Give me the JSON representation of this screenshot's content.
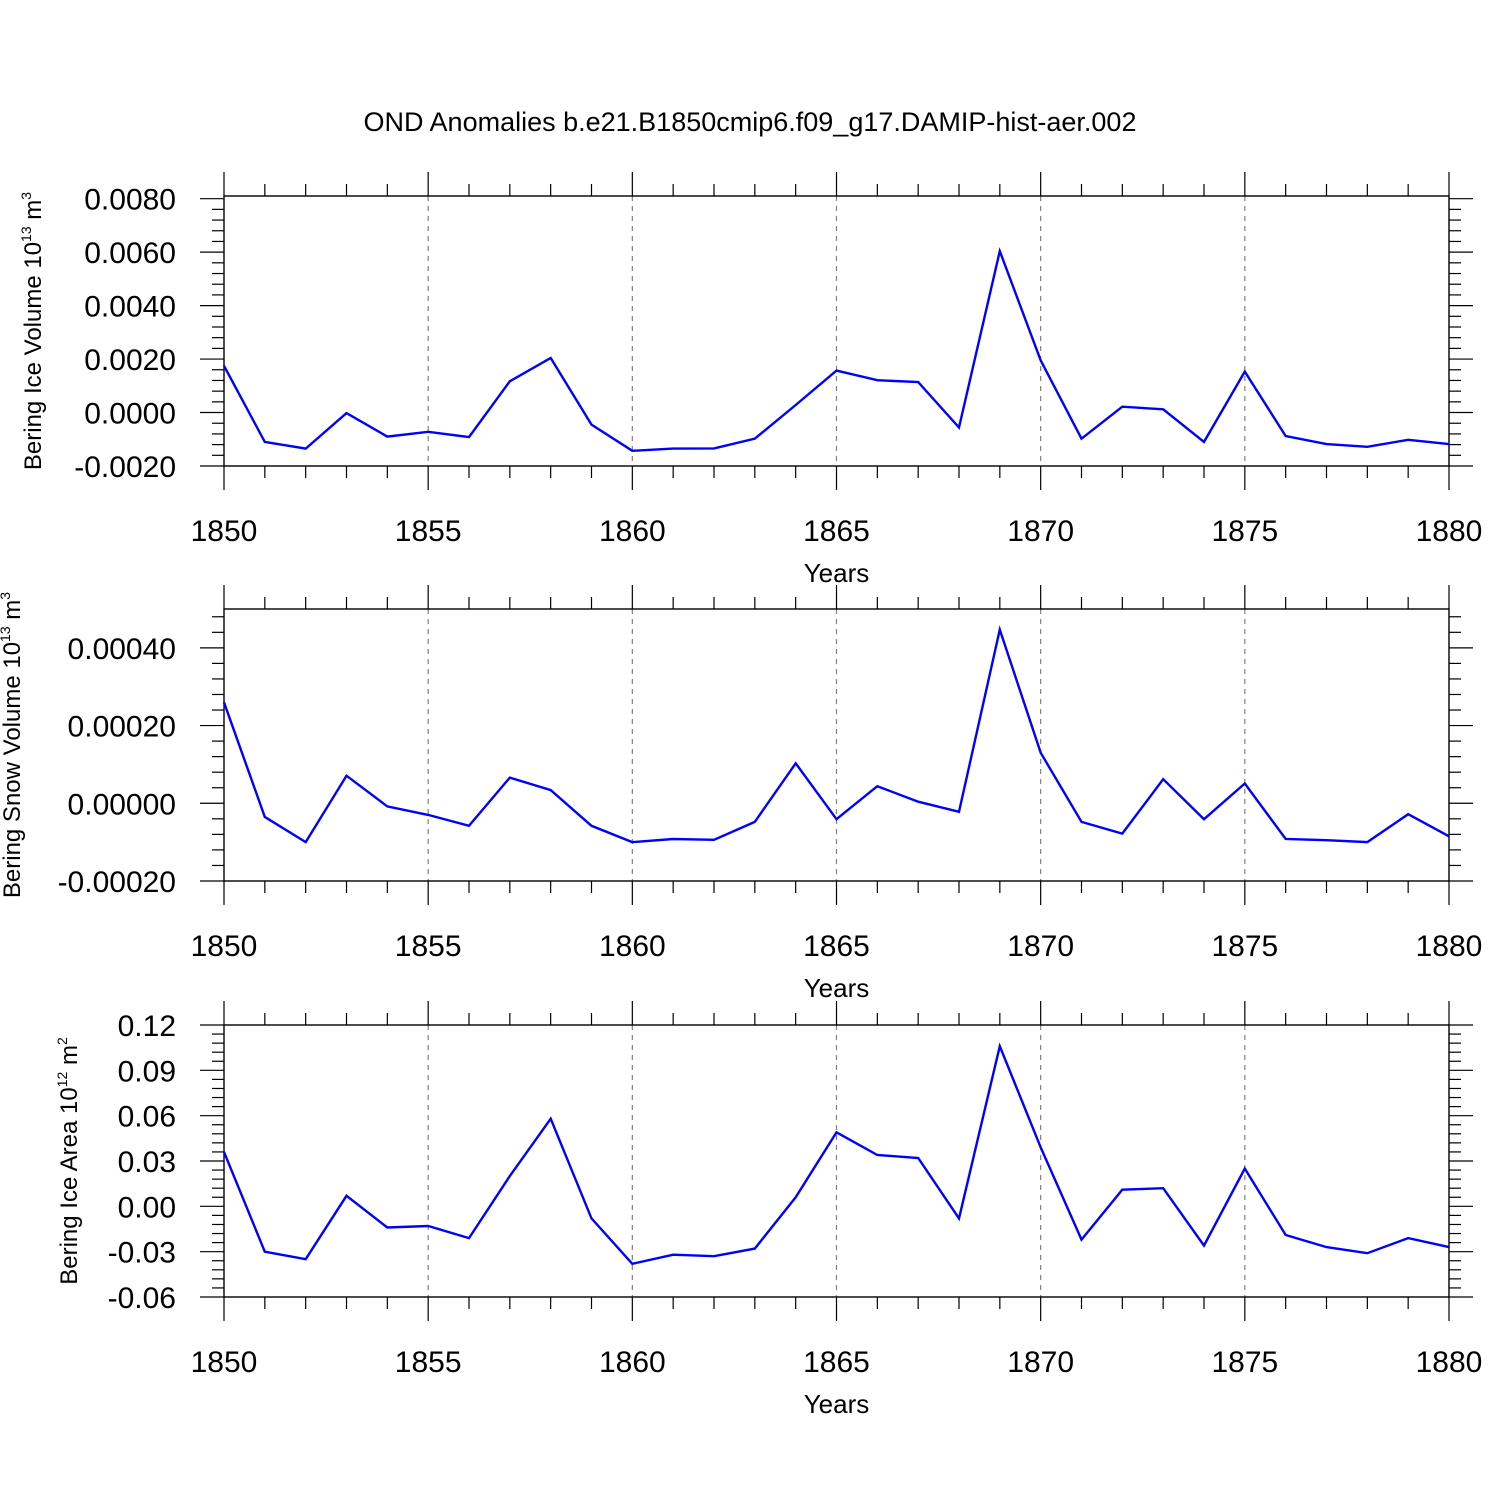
{
  "chart_data": {
    "title": "OND Anomalies b.e21.B1850cmip6.f09_g17.DAMIP-hist-aer.002",
    "panels": [
      {
        "type": "line",
        "ylabel_main": "Bering Ice Volume 10",
        "ylabel_exp": "13",
        "ylabel_unit": " m",
        "ylabel_unit_exp": "3",
        "xlabel": "Years",
        "xlim": [
          1850,
          1880
        ],
        "ylim": [
          -0.002,
          0.0081
        ],
        "xticks": [
          1850,
          1855,
          1860,
          1865,
          1870,
          1875,
          1880
        ],
        "yticks": [
          -0.002,
          0.0,
          0.002,
          0.004,
          0.006,
          0.008
        ],
        "ytick_labels": [
          "-0.0020",
          "0.0000",
          "0.0020",
          "0.0040",
          "0.0060",
          "0.0080"
        ],
        "x": [
          1850,
          1851,
          1852,
          1853,
          1854,
          1855,
          1856,
          1857,
          1858,
          1859,
          1860,
          1861,
          1862,
          1863,
          1864,
          1865,
          1866,
          1867,
          1868,
          1869,
          1870,
          1871,
          1872,
          1873,
          1874,
          1875,
          1876,
          1877,
          1878,
          1879,
          1880
        ],
        "values": [
          0.00175,
          -0.0011,
          -0.00135,
          -2e-05,
          -0.0009,
          -0.00072,
          -0.00092,
          0.00117,
          0.00204,
          -0.00045,
          -0.00143,
          -0.00135,
          -0.00134,
          -0.00098,
          0.00028,
          0.00157,
          0.00121,
          0.00114,
          -0.00056,
          0.00604,
          0.00195,
          -0.00098,
          0.00022,
          0.00012,
          -0.0011,
          0.00153,
          -0.00088,
          -0.00118,
          -0.00128,
          -0.00102,
          -0.00118
        ],
        "color": "#0000ff"
      },
      {
        "type": "line",
        "ylabel_main": "Bering Snow Volume 10",
        "ylabel_exp": "13",
        "ylabel_unit": " m",
        "ylabel_unit_exp": "3",
        "xlabel": "Years",
        "xlim": [
          1850,
          1880
        ],
        "ylim": [
          -0.0002,
          0.0005
        ],
        "xticks": [
          1850,
          1855,
          1860,
          1865,
          1870,
          1875,
          1880
        ],
        "yticks": [
          -0.0002,
          0.0,
          0.0002,
          0.0004
        ],
        "ytick_labels": [
          "-0.00020",
          "0.00000",
          "0.00020",
          "0.00040"
        ],
        "x": [
          1850,
          1851,
          1852,
          1853,
          1854,
          1855,
          1856,
          1857,
          1858,
          1859,
          1860,
          1861,
          1862,
          1863,
          1864,
          1865,
          1866,
          1867,
          1868,
          1869,
          1870,
          1871,
          1872,
          1873,
          1874,
          1875,
          1876,
          1877,
          1878,
          1879,
          1880
        ],
        "values": [
          0.00026,
          -3.5e-05,
          -0.0001,
          7.1e-05,
          -8e-06,
          -3e-05,
          -5.8e-05,
          6.6e-05,
          3.4e-05,
          -5.8e-05,
          -0.0001,
          -9.2e-05,
          -9.4e-05,
          -4.8e-05,
          0.000103,
          -4.1e-05,
          4.4e-05,
          4e-06,
          -2.2e-05,
          0.000447,
          0.00013,
          -4.8e-05,
          -7.8e-05,
          6.2e-05,
          -4.1e-05,
          5.1e-05,
          -9.2e-05,
          -9.5e-05,
          -0.0001,
          -2.8e-05,
          -8.5e-05
        ],
        "color": "#0000ff"
      },
      {
        "type": "line",
        "ylabel_main": "Bering Ice Area 10",
        "ylabel_exp": "12",
        "ylabel_unit": " m",
        "ylabel_unit_exp": "2",
        "xlabel": "Years",
        "xlim": [
          1850,
          1880
        ],
        "ylim": [
          -0.06,
          0.12
        ],
        "xticks": [
          1850,
          1855,
          1860,
          1865,
          1870,
          1875,
          1880
        ],
        "yticks": [
          -0.06,
          -0.03,
          0.0,
          0.03,
          0.06,
          0.09,
          0.12
        ],
        "ytick_labels": [
          "-0.06",
          "-0.03",
          "0.00",
          "0.03",
          "0.06",
          "0.09",
          "0.12"
        ],
        "x": [
          1850,
          1851,
          1852,
          1853,
          1854,
          1855,
          1856,
          1857,
          1858,
          1859,
          1860,
          1861,
          1862,
          1863,
          1864,
          1865,
          1866,
          1867,
          1868,
          1869,
          1870,
          1871,
          1872,
          1873,
          1874,
          1875,
          1876,
          1877,
          1878,
          1879,
          1880
        ],
        "values": [
          0.036,
          -0.03,
          -0.035,
          0.007,
          -0.014,
          -0.013,
          -0.021,
          0.02,
          0.058,
          -0.008,
          -0.038,
          -0.032,
          -0.033,
          -0.028,
          0.006,
          0.049,
          0.034,
          0.032,
          -0.008,
          0.106,
          0.039,
          -0.022,
          0.011,
          0.012,
          -0.026,
          0.025,
          -0.019,
          -0.027,
          -0.031,
          -0.021,
          -0.027
        ],
        "color": "#0000ff"
      }
    ]
  }
}
